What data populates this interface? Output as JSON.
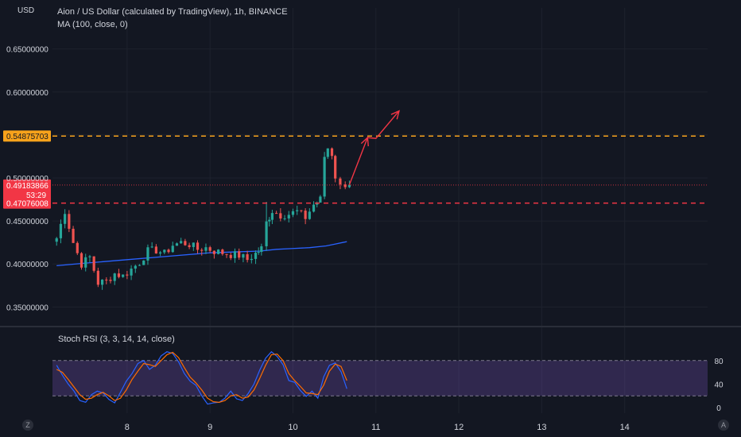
{
  "header": {
    "title": "Aion / US Dollar (calculated by TradingView), 1h, BINANCE",
    "ma_label": "MA (100, close, 0)",
    "unit": "USD"
  },
  "corner": {
    "left": "Z",
    "right": "A"
  },
  "colors": {
    "up": "#26a69a",
    "down": "#ef5350",
    "ma": "#2962ff",
    "resistance": "#f7a21b",
    "support": "#f23645",
    "current": "#f23645",
    "arrow": "#f23645",
    "stoch_k": "#2962ff",
    "stoch_d": "#ff6d00",
    "rsi_band": "#7e57c2"
  },
  "chart_data": [
    {
      "type": "candlestick",
      "title": "Aion / US Dollar (calculated by TradingView), 1h, BINANCE",
      "ylabel": "USD",
      "ylim": [
        0.33,
        0.67
      ],
      "y_ticks": [
        0.35,
        0.4,
        0.45,
        0.5,
        0.55,
        0.6,
        0.65
      ],
      "y_tick_labels": [
        "0.35000000",
        "0.40000000",
        "0.45000000",
        "0.50000000",
        "0.55000000",
        "0.60000000",
        "0.65000000"
      ],
      "x_ticks": [
        "8",
        "9",
        "10",
        "11",
        "12",
        "13",
        "14"
      ],
      "x_tick_positions_day": [
        8,
        9,
        10,
        11,
        12,
        13,
        14
      ],
      "xlim_day": [
        7.1,
        15.0
      ],
      "price_levels": [
        {
          "name": "resistance",
          "value": 0.54875703,
          "label": "0.54875703",
          "style": "dashed"
        },
        {
          "name": "support",
          "value": 0.47076008,
          "label": "0.47076008",
          "style": "dashed"
        },
        {
          "name": "current",
          "value": 0.49183866,
          "label": "0.49183866",
          "countdown": "53:29",
          "style": "dotted"
        }
      ],
      "close_path": [
        [
          7.15,
          0.43
        ],
        [
          7.25,
          0.462
        ],
        [
          7.35,
          0.425
        ],
        [
          7.45,
          0.4
        ],
        [
          7.55,
          0.408
        ],
        [
          7.65,
          0.378
        ],
        [
          7.75,
          0.38
        ],
        [
          7.85,
          0.389
        ],
        [
          7.95,
          0.386
        ],
        [
          8.05,
          0.394
        ],
        [
          8.15,
          0.402
        ],
        [
          8.25,
          0.415
        ],
        [
          8.35,
          0.416
        ],
        [
          8.45,
          0.412
        ],
        [
          8.55,
          0.422
        ],
        [
          8.65,
          0.425
        ],
        [
          8.75,
          0.423
        ],
        [
          8.85,
          0.417
        ],
        [
          8.95,
          0.419
        ],
        [
          9.05,
          0.415
        ],
        [
          9.15,
          0.413
        ],
        [
          9.25,
          0.411
        ],
        [
          9.35,
          0.41
        ],
        [
          9.45,
          0.405
        ],
        [
          9.55,
          0.412
        ],
        [
          9.62,
          0.418
        ],
        [
          9.68,
          0.448
        ],
        [
          9.75,
          0.462
        ],
        [
          9.85,
          0.457
        ],
        [
          9.95,
          0.458
        ],
        [
          10.05,
          0.461
        ],
        [
          10.15,
          0.454
        ],
        [
          10.25,
          0.469
        ],
        [
          10.33,
          0.475
        ],
        [
          10.38,
          0.525
        ],
        [
          10.42,
          0.535
        ],
        [
          10.47,
          0.528
        ],
        [
          10.51,
          0.502
        ],
        [
          10.57,
          0.49
        ],
        [
          10.63,
          0.493
        ],
        [
          10.68,
          0.492
        ]
      ],
      "series": [
        {
          "name": "MA (100, close, 0)",
          "x_day": [
            7.15,
            7.5,
            8.0,
            8.5,
            9.0,
            9.3,
            9.6,
            9.8,
            10.0,
            10.2,
            10.4,
            10.5,
            10.6,
            10.65
          ],
          "values": [
            0.398,
            0.401,
            0.405,
            0.409,
            0.413,
            0.414,
            0.415,
            0.417,
            0.418,
            0.419,
            0.421,
            0.423,
            0.425,
            0.426
          ]
        }
      ],
      "projection_arrow_day": [
        [
          10.68,
          0.492
        ],
        [
          10.9,
          0.547
        ],
        [
          11.0,
          0.546
        ],
        [
          11.28,
          0.578
        ]
      ]
    },
    {
      "type": "line",
      "title": "Stoch RSI (3, 3, 14, 14, close)",
      "ylim": [
        0,
        100
      ],
      "y_ticks": [
        0,
        40,
        80
      ],
      "band": [
        20,
        80
      ],
      "x_day": [
        7.15,
        7.22,
        7.29,
        7.36,
        7.43,
        7.5,
        7.57,
        7.64,
        7.71,
        7.78,
        7.85,
        7.92,
        7.99,
        8.06,
        8.13,
        8.2,
        8.27,
        8.34,
        8.41,
        8.48,
        8.55,
        8.62,
        8.69,
        8.76,
        8.83,
        8.9,
        8.97,
        9.04,
        9.11,
        9.18,
        9.25,
        9.32,
        9.39,
        9.46,
        9.53,
        9.6,
        9.67,
        9.74,
        9.81,
        9.88,
        9.95,
        10.02,
        10.09,
        10.16,
        10.23,
        10.3,
        10.37,
        10.44,
        10.51,
        10.58,
        10.65
      ],
      "series": [
        {
          "name": "%K",
          "values": [
            72,
            55,
            40,
            28,
            12,
            9,
            22,
            28,
            25,
            14,
            8,
            26,
            45,
            58,
            75,
            80,
            65,
            72,
            88,
            95,
            92,
            78,
            58,
            45,
            38,
            20,
            6,
            8,
            9,
            16,
            28,
            15,
            12,
            24,
            40,
            64,
            84,
            95,
            87,
            73,
            46,
            43,
            29,
            19,
            28,
            16,
            52,
            72,
            76,
            61,
            32
          ]
        },
        {
          "name": "%D",
          "values": [
            65,
            60,
            48,
            35,
            22,
            14,
            16,
            22,
            26,
            20,
            12,
            16,
            30,
            48,
            62,
            75,
            73,
            70,
            80,
            90,
            94,
            85,
            68,
            52,
            42,
            30,
            16,
            10,
            9,
            12,
            20,
            22,
            16,
            18,
            30,
            50,
            72,
            90,
            91,
            80,
            58,
            46,
            36,
            25,
            24,
            22,
            38,
            62,
            74,
            70,
            46
          ]
        }
      ]
    }
  ]
}
